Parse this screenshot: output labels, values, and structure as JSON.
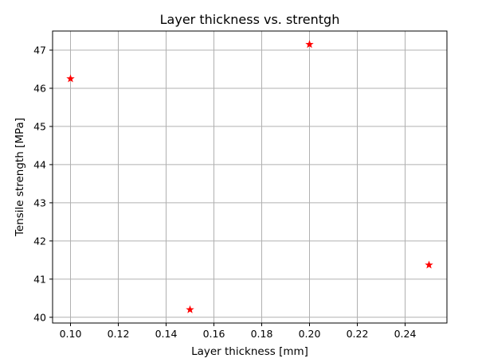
{
  "chart_data": {
    "type": "scatter",
    "title": "Layer thickness vs. strentgh",
    "xlabel": "Layer thickness [mm]",
    "ylabel": "Tensile strength [MPa]",
    "xlim": [
      0.0925,
      0.2575
    ],
    "ylim": [
      39.85,
      47.5
    ],
    "x_ticks": [
      0.1,
      0.12,
      0.14,
      0.16,
      0.18,
      0.2,
      0.22,
      0.24
    ],
    "x_tick_labels": [
      "0.10",
      "0.12",
      "0.14",
      "0.16",
      "0.18",
      "0.20",
      "0.22",
      "0.24"
    ],
    "y_ticks": [
      40,
      41,
      42,
      43,
      44,
      45,
      46,
      47
    ],
    "y_tick_labels": [
      "40",
      "41",
      "42",
      "43",
      "44",
      "45",
      "46",
      "47"
    ],
    "grid": true,
    "marker": "star",
    "marker_color": "#ff0000",
    "series": [
      {
        "x": [
          0.1,
          0.15,
          0.2,
          0.25
        ],
        "y": [
          46.25,
          40.2,
          47.15,
          41.37
        ]
      }
    ]
  }
}
